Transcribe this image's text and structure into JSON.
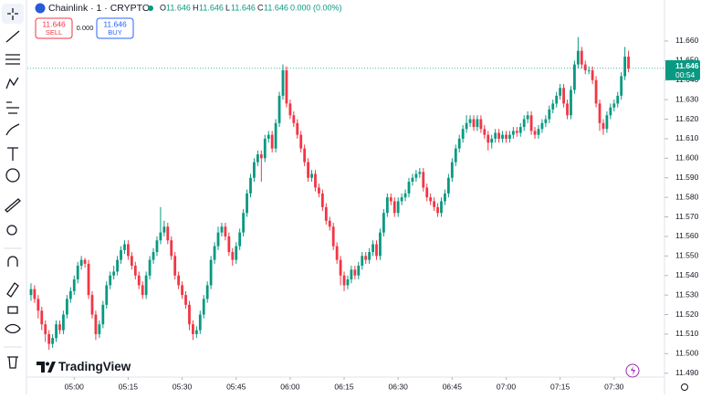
{
  "chart_data": {
    "type": "candlestick",
    "legend": {
      "symbol": "Chainlink · 1 · CRYPTO",
      "o_label": "O",
      "o": "11.646",
      "h_label": "H",
      "h": "11.646",
      "l_label": "L",
      "l": "11.646",
      "c_label": "C",
      "c": "11.646",
      "change": "0.000 (0.00%)"
    },
    "trade": {
      "sell_price": "11.646",
      "sell": "SELL",
      "spread": "0.000",
      "buy_price": "11.646",
      "buy": "BUY"
    },
    "brand": "TradingView",
    "up_color": "#089981",
    "down_color": "#f23645",
    "last_price": 11.646,
    "last_label": "11.646",
    "countdown": "00:54",
    "xlim": [
      -1,
      176
    ],
    "ylim": [
      11.488,
      11.681
    ],
    "yticks": [
      {
        "value": 11.49,
        "label": "11.490"
      },
      {
        "value": 11.5,
        "label": "11.500"
      },
      {
        "value": 11.51,
        "label": "11.510"
      },
      {
        "value": 11.52,
        "label": "11.520"
      },
      {
        "value": 11.53,
        "label": "11.530"
      },
      {
        "value": 11.54,
        "label": "11.540"
      },
      {
        "value": 11.55,
        "label": "11.550"
      },
      {
        "value": 11.56,
        "label": "11.560"
      },
      {
        "value": 11.57,
        "label": "11.570"
      },
      {
        "value": 11.58,
        "label": "11.580"
      },
      {
        "value": 11.59,
        "label": "11.590"
      },
      {
        "value": 11.6,
        "label": "11.600"
      },
      {
        "value": 11.61,
        "label": "11.610"
      },
      {
        "value": 11.62,
        "label": "11.620"
      },
      {
        "value": 11.63,
        "label": "11.630"
      },
      {
        "value": 11.64,
        "label": "11.640"
      },
      {
        "value": 11.65,
        "label": "11.650"
      },
      {
        "value": 11.66,
        "label": "11.660"
      }
    ],
    "xticks": [
      {
        "value": 12,
        "label": "05:00"
      },
      {
        "value": 27,
        "label": "05:15"
      },
      {
        "value": 42,
        "label": "05:30"
      },
      {
        "value": 57,
        "label": "05:45"
      },
      {
        "value": 72,
        "label": "06:00"
      },
      {
        "value": 87,
        "label": "06:15"
      },
      {
        "value": 102,
        "label": "06:30"
      },
      {
        "value": 117,
        "label": "06:45"
      },
      {
        "value": 132,
        "label": "07:00"
      },
      {
        "value": 147,
        "label": "07:15"
      },
      {
        "value": 162,
        "label": "07:30"
      }
    ],
    "open": [
      11.53,
      11.533,
      11.528,
      11.522,
      11.515,
      11.51,
      11.505,
      11.508,
      11.515,
      11.512,
      11.52,
      11.528,
      11.532,
      11.538,
      11.545,
      11.548,
      11.546,
      11.53,
      11.52,
      11.51,
      11.515,
      11.525,
      11.535,
      11.54,
      11.542,
      11.548,
      11.553,
      11.556,
      11.55,
      11.545,
      11.54,
      11.535,
      11.53,
      11.54,
      11.548,
      11.552,
      11.558,
      11.562,
      11.565,
      11.558,
      11.55,
      11.54,
      11.535,
      11.53,
      11.525,
      11.515,
      11.51,
      11.512,
      11.52,
      11.528,
      11.535,
      11.548,
      11.555,
      11.562,
      11.565,
      11.56,
      11.552,
      11.548,
      11.555,
      11.562,
      11.572,
      11.582,
      11.59,
      11.598,
      11.602,
      11.6,
      11.61,
      11.612,
      11.605,
      11.618,
      11.632,
      11.645,
      11.628,
      11.622,
      11.618,
      11.612,
      11.605,
      11.598,
      11.59,
      11.592,
      11.585,
      11.582,
      11.575,
      11.568,
      11.565,
      11.555,
      11.548,
      11.54,
      11.535,
      11.538,
      11.543,
      11.54,
      11.545,
      11.55,
      11.548,
      11.552,
      11.556,
      11.55,
      11.562,
      11.572,
      11.58,
      11.578,
      11.572,
      11.578,
      11.58,
      11.582,
      11.588,
      11.59,
      11.592,
      11.593,
      11.585,
      11.58,
      11.578,
      11.575,
      11.572,
      11.578,
      11.582,
      11.59,
      11.598,
      11.605,
      11.61,
      11.615,
      11.618,
      11.62,
      11.616,
      11.62,
      11.615,
      11.612,
      11.608,
      11.61,
      11.613,
      11.61,
      11.612,
      11.61,
      11.612,
      11.614,
      11.613,
      11.616,
      11.62,
      11.622,
      11.614,
      11.612,
      11.615,
      11.618,
      11.62,
      11.625,
      11.628,
      11.632,
      11.636,
      11.628,
      11.622,
      11.635,
      11.648,
      11.655,
      11.648,
      11.645,
      11.645,
      11.64,
      11.628,
      11.618,
      11.615,
      11.622,
      11.626,
      11.628,
      11.632,
      11.642,
      11.652
    ],
    "high": [
      11.536,
      11.535,
      11.53,
      11.524,
      11.517,
      11.512,
      11.51,
      11.517,
      11.517,
      11.522,
      11.53,
      11.534,
      11.54,
      11.547,
      11.55,
      11.549,
      11.548,
      11.532,
      11.522,
      11.517,
      11.527,
      11.537,
      11.542,
      11.545,
      11.55,
      11.555,
      11.558,
      11.558,
      11.552,
      11.547,
      11.542,
      11.537,
      11.542,
      11.55,
      11.554,
      11.56,
      11.575,
      11.568,
      11.567,
      11.56,
      11.552,
      11.542,
      11.537,
      11.532,
      11.527,
      11.517,
      11.514,
      11.522,
      11.53,
      11.537,
      11.55,
      11.557,
      11.565,
      11.567,
      11.567,
      11.562,
      11.554,
      11.557,
      11.564,
      11.574,
      11.584,
      11.592,
      11.6,
      11.604,
      11.604,
      11.612,
      11.614,
      11.614,
      11.62,
      11.634,
      11.648,
      11.647,
      11.63,
      11.624,
      11.62,
      11.614,
      11.607,
      11.6,
      11.594,
      11.594,
      11.587,
      11.584,
      11.577,
      11.57,
      11.567,
      11.557,
      11.55,
      11.542,
      11.54,
      11.545,
      11.545,
      11.547,
      11.552,
      11.552,
      11.554,
      11.558,
      11.558,
      11.564,
      11.574,
      11.582,
      11.582,
      11.58,
      11.58,
      11.582,
      11.584,
      11.59,
      11.592,
      11.594,
      11.595,
      11.595,
      11.587,
      11.582,
      11.58,
      11.577,
      11.58,
      11.584,
      11.592,
      11.6,
      11.607,
      11.612,
      11.617,
      11.622,
      11.622,
      11.622,
      11.622,
      11.622,
      11.617,
      11.614,
      11.612,
      11.615,
      11.615,
      11.614,
      11.614,
      11.614,
      11.616,
      11.616,
      11.618,
      11.622,
      11.624,
      11.624,
      11.616,
      11.617,
      11.62,
      11.622,
      11.627,
      11.63,
      11.634,
      11.638,
      11.638,
      11.63,
      11.637,
      11.65,
      11.662,
      11.657,
      11.65,
      11.647,
      11.647,
      11.642,
      11.63,
      11.62,
      11.624,
      11.628,
      11.63,
      11.634,
      11.644,
      11.657,
      11.655
    ],
    "low": [
      11.527,
      11.526,
      11.518,
      11.512,
      11.506,
      11.502,
      11.503,
      11.506,
      11.51,
      11.51,
      11.518,
      11.526,
      11.53,
      11.536,
      11.543,
      11.544,
      11.528,
      11.518,
      11.507,
      11.508,
      11.513,
      11.523,
      11.533,
      11.538,
      11.54,
      11.546,
      11.551,
      11.548,
      11.543,
      11.538,
      11.533,
      11.528,
      11.528,
      11.538,
      11.546,
      11.55,
      11.556,
      11.56,
      11.556,
      11.548,
      11.538,
      11.533,
      11.528,
      11.523,
      11.512,
      11.507,
      11.508,
      11.51,
      11.518,
      11.526,
      11.533,
      11.546,
      11.553,
      11.56,
      11.558,
      11.55,
      11.545,
      11.546,
      11.553,
      11.56,
      11.57,
      11.58,
      11.588,
      11.596,
      11.588,
      11.598,
      11.608,
      11.603,
      11.603,
      11.616,
      11.63,
      11.626,
      11.62,
      11.616,
      11.61,
      11.603,
      11.596,
      11.588,
      11.588,
      11.583,
      11.58,
      11.573,
      11.566,
      11.563,
      11.553,
      11.546,
      11.535,
      11.532,
      11.533,
      11.536,
      11.538,
      11.538,
      11.543,
      11.546,
      11.546,
      11.55,
      11.548,
      11.548,
      11.56,
      11.57,
      11.576,
      11.57,
      11.57,
      11.576,
      11.578,
      11.58,
      11.586,
      11.588,
      11.59,
      11.583,
      11.578,
      11.576,
      11.573,
      11.57,
      11.57,
      11.576,
      11.58,
      11.588,
      11.596,
      11.603,
      11.608,
      11.613,
      11.616,
      11.614,
      11.614,
      11.613,
      11.61,
      11.604,
      11.605,
      11.608,
      11.608,
      11.608,
      11.608,
      11.608,
      11.61,
      11.611,
      11.611,
      11.614,
      11.618,
      11.612,
      11.61,
      11.61,
      11.613,
      11.616,
      11.618,
      11.623,
      11.626,
      11.63,
      11.626,
      11.62,
      11.62,
      11.633,
      11.646,
      11.646,
      11.643,
      11.643,
      11.638,
      11.626,
      11.614,
      11.612,
      11.613,
      11.62,
      11.624,
      11.626,
      11.63,
      11.64,
      11.644
    ],
    "close": [
      11.533,
      11.528,
      11.522,
      11.515,
      11.51,
      11.505,
      11.508,
      11.515,
      11.512,
      11.52,
      11.528,
      11.532,
      11.538,
      11.545,
      11.548,
      11.546,
      11.53,
      11.52,
      11.51,
      11.515,
      11.525,
      11.535,
      11.54,
      11.542,
      11.548,
      11.553,
      11.556,
      11.55,
      11.545,
      11.54,
      11.535,
      11.53,
      11.54,
      11.548,
      11.552,
      11.558,
      11.562,
      11.565,
      11.558,
      11.55,
      11.54,
      11.535,
      11.53,
      11.525,
      11.515,
      11.51,
      11.512,
      11.52,
      11.528,
      11.535,
      11.548,
      11.555,
      11.562,
      11.565,
      11.56,
      11.552,
      11.548,
      11.555,
      11.562,
      11.572,
      11.582,
      11.59,
      11.598,
      11.602,
      11.6,
      11.61,
      11.612,
      11.605,
      11.618,
      11.632,
      11.645,
      11.628,
      11.622,
      11.618,
      11.612,
      11.605,
      11.598,
      11.59,
      11.592,
      11.585,
      11.582,
      11.575,
      11.568,
      11.565,
      11.555,
      11.548,
      11.54,
      11.535,
      11.538,
      11.543,
      11.54,
      11.545,
      11.55,
      11.548,
      11.552,
      11.556,
      11.55,
      11.562,
      11.572,
      11.58,
      11.578,
      11.572,
      11.578,
      11.58,
      11.582,
      11.588,
      11.59,
      11.592,
      11.593,
      11.585,
      11.58,
      11.578,
      11.575,
      11.572,
      11.578,
      11.582,
      11.59,
      11.598,
      11.605,
      11.61,
      11.615,
      11.618,
      11.62,
      11.616,
      11.62,
      11.615,
      11.612,
      11.608,
      11.61,
      11.613,
      11.61,
      11.612,
      11.61,
      11.612,
      11.614,
      11.613,
      11.616,
      11.62,
      11.622,
      11.614,
      11.612,
      11.615,
      11.618,
      11.62,
      11.625,
      11.628,
      11.632,
      11.636,
      11.628,
      11.622,
      11.635,
      11.648,
      11.655,
      11.648,
      11.645,
      11.645,
      11.64,
      11.628,
      11.618,
      11.615,
      11.622,
      11.626,
      11.628,
      11.632,
      11.642,
      11.652,
      11.646
    ]
  }
}
